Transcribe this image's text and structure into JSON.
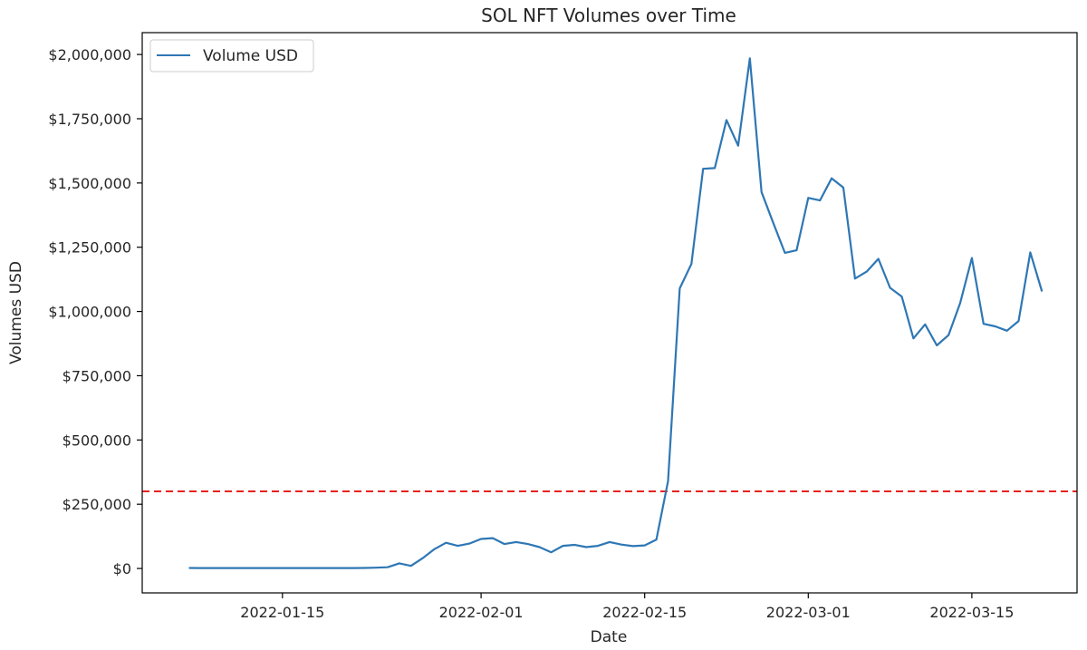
{
  "chart_data": {
    "type": "line",
    "title": "SOL NFT Volumes over Time",
    "xlabel": "Date",
    "ylabel": "Volumes USD",
    "x_ticks": [
      "2022-01-15",
      "2022-02-01",
      "2022-02-15",
      "2022-03-01",
      "2022-03-15"
    ],
    "y_ticks": [
      0,
      250000,
      500000,
      750000,
      1000000,
      1250000,
      1500000,
      1750000,
      2000000
    ],
    "y_tick_labels": [
      "$0",
      "$250,000",
      "$500,000",
      "$750,000",
      "$1,000,000",
      "$1,250,000",
      "$1,500,000",
      "$1,750,000",
      "$2,000,000"
    ],
    "xlim": [
      "2022-01-03",
      "2022-03-24"
    ],
    "ylim": [
      -95000,
      2085000
    ],
    "legend": {
      "entries": [
        "Volume USD"
      ],
      "placement": "top-left"
    },
    "grid": false,
    "reference_line": {
      "y": 300000,
      "style": "dashed",
      "color": "#e8221e"
    },
    "colors": {
      "series": "#2e77b4",
      "reference": "#e8221e",
      "axes": "#000000",
      "text": "#262626"
    },
    "series": [
      {
        "name": "Volume USD",
        "x": [
          "2022-01-07",
          "2022-01-08",
          "2022-01-09",
          "2022-01-10",
          "2022-01-11",
          "2022-01-12",
          "2022-01-13",
          "2022-01-14",
          "2022-01-15",
          "2022-01-16",
          "2022-01-17",
          "2022-01-18",
          "2022-01-19",
          "2022-01-20",
          "2022-01-21",
          "2022-01-22",
          "2022-01-23",
          "2022-01-24",
          "2022-01-25",
          "2022-01-26",
          "2022-01-27",
          "2022-01-28",
          "2022-01-29",
          "2022-01-30",
          "2022-01-31",
          "2022-02-01",
          "2022-02-02",
          "2022-02-03",
          "2022-02-04",
          "2022-02-05",
          "2022-02-06",
          "2022-02-07",
          "2022-02-08",
          "2022-02-09",
          "2022-02-10",
          "2022-02-11",
          "2022-02-12",
          "2022-02-13",
          "2022-02-14",
          "2022-02-15",
          "2022-02-16",
          "2022-02-17",
          "2022-02-18",
          "2022-02-19",
          "2022-02-20",
          "2022-02-21",
          "2022-02-22",
          "2022-02-23",
          "2022-02-24",
          "2022-02-25",
          "2022-02-26",
          "2022-02-27",
          "2022-02-28",
          "2022-03-01",
          "2022-03-02",
          "2022-03-03",
          "2022-03-04",
          "2022-03-05",
          "2022-03-06",
          "2022-03-07",
          "2022-03-08",
          "2022-03-09",
          "2022-03-10",
          "2022-03-11",
          "2022-03-12",
          "2022-03-13",
          "2022-03-14",
          "2022-03-15",
          "2022-03-16",
          "2022-03-17",
          "2022-03-18",
          "2022-03-19",
          "2022-03-20",
          "2022-03-21"
        ],
        "values": [
          2000,
          1500,
          1500,
          1500,
          1500,
          1500,
          1500,
          1500,
          1500,
          1500,
          1500,
          1500,
          1500,
          1500,
          1500,
          2000,
          3000,
          5000,
          20000,
          10000,
          40000,
          75000,
          100000,
          88000,
          97000,
          115000,
          118000,
          95000,
          103000,
          95000,
          83000,
          63000,
          88000,
          92000,
          83000,
          88000,
          103000,
          93000,
          87000,
          90000,
          112000,
          340000,
          1090000,
          1185000,
          1555000,
          1558000,
          1745000,
          1645000,
          1985000,
          1465000,
          1345000,
          1228000,
          1238000,
          1442000,
          1432000,
          1518000,
          1482000,
          1128000,
          1155000,
          1205000,
          1092000,
          1058000,
          895000,
          950000,
          868000,
          908000,
          1033000,
          1208000,
          952000,
          942000,
          925000,
          963000,
          1230000,
          1078000
        ]
      }
    ]
  }
}
